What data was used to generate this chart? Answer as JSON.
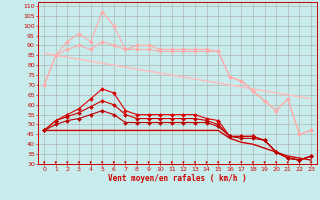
{
  "xlabel": "Vent moyen/en rafales ( km/h )",
  "bg_color": "#c8ecec",
  "xlim": [
    -0.5,
    23.5
  ],
  "ylim": [
    30,
    112
  ],
  "yticks": [
    30,
    35,
    40,
    45,
    50,
    55,
    60,
    65,
    70,
    75,
    80,
    85,
    90,
    95,
    100,
    105,
    110
  ],
  "xticks": [
    0,
    1,
    2,
    3,
    4,
    5,
    6,
    7,
    8,
    9,
    10,
    11,
    12,
    13,
    14,
    15,
    16,
    17,
    18,
    19,
    20,
    21,
    22,
    23
  ],
  "x": [
    0,
    1,
    2,
    3,
    4,
    5,
    6,
    7,
    8,
    9,
    10,
    11,
    12,
    13,
    14,
    15,
    16,
    17,
    18,
    19,
    20,
    21,
    22,
    23
  ],
  "lines": [
    {
      "y": [
        70,
        85,
        92,
        96,
        92,
        107,
        100,
        88,
        90,
        90,
        88,
        88,
        88,
        88,
        88,
        87,
        74,
        72,
        67,
        62,
        57,
        63,
        45,
        47
      ],
      "color": "#ffaaaa",
      "marker": "D",
      "lw": 0.8,
      "ms": 2.0
    },
    {
      "y": [
        70,
        85,
        88,
        90,
        88,
        92,
        90,
        88,
        88,
        88,
        87,
        87,
        87,
        87,
        87,
        87,
        74,
        72,
        67,
        62,
        57,
        63,
        45,
        47
      ],
      "color": "#ffaaaa",
      "marker": "D",
      "lw": 0.8,
      "ms": 2.0
    },
    {
      "y": [
        86,
        85,
        84,
        83,
        82,
        81,
        80,
        79,
        78,
        77,
        76,
        75,
        74,
        73,
        72,
        71,
        70,
        69,
        68,
        67,
        66,
        65,
        64,
        63
      ],
      "color": "#ffbbbb",
      "marker": null,
      "lw": 1.0,
      "ms": 0
    },
    {
      "y": [
        47,
        52,
        55,
        58,
        63,
        68,
        66,
        57,
        55,
        55,
        55,
        55,
        55,
        55,
        53,
        52,
        44,
        44,
        44,
        42,
        36,
        33,
        32,
        34
      ],
      "color": "#dd0000",
      "marker": "D",
      "lw": 0.8,
      "ms": 2.0
    },
    {
      "y": [
        47,
        52,
        54,
        56,
        59,
        62,
        60,
        55,
        53,
        53,
        53,
        53,
        53,
        53,
        52,
        50,
        44,
        44,
        44,
        42,
        36,
        33,
        32,
        34
      ],
      "color": "#cc0000",
      "marker": "D",
      "lw": 0.8,
      "ms": 2.0
    },
    {
      "y": [
        47,
        50,
        52,
        53,
        55,
        57,
        55,
        51,
        51,
        51,
        51,
        51,
        51,
        51,
        51,
        49,
        44,
        43,
        43,
        42,
        36,
        33,
        32,
        34
      ],
      "color": "#bb0000",
      "marker": "D",
      "lw": 0.8,
      "ms": 2.0
    },
    {
      "y": [
        47,
        47,
        47,
        47,
        47,
        47,
        47,
        47,
        47,
        47,
        47,
        47,
        47,
        47,
        47,
        47,
        43,
        41,
        40,
        38,
        36,
        34,
        33,
        32
      ],
      "color": "#cc0000",
      "marker": null,
      "lw": 1.0,
      "ms": 0
    }
  ]
}
